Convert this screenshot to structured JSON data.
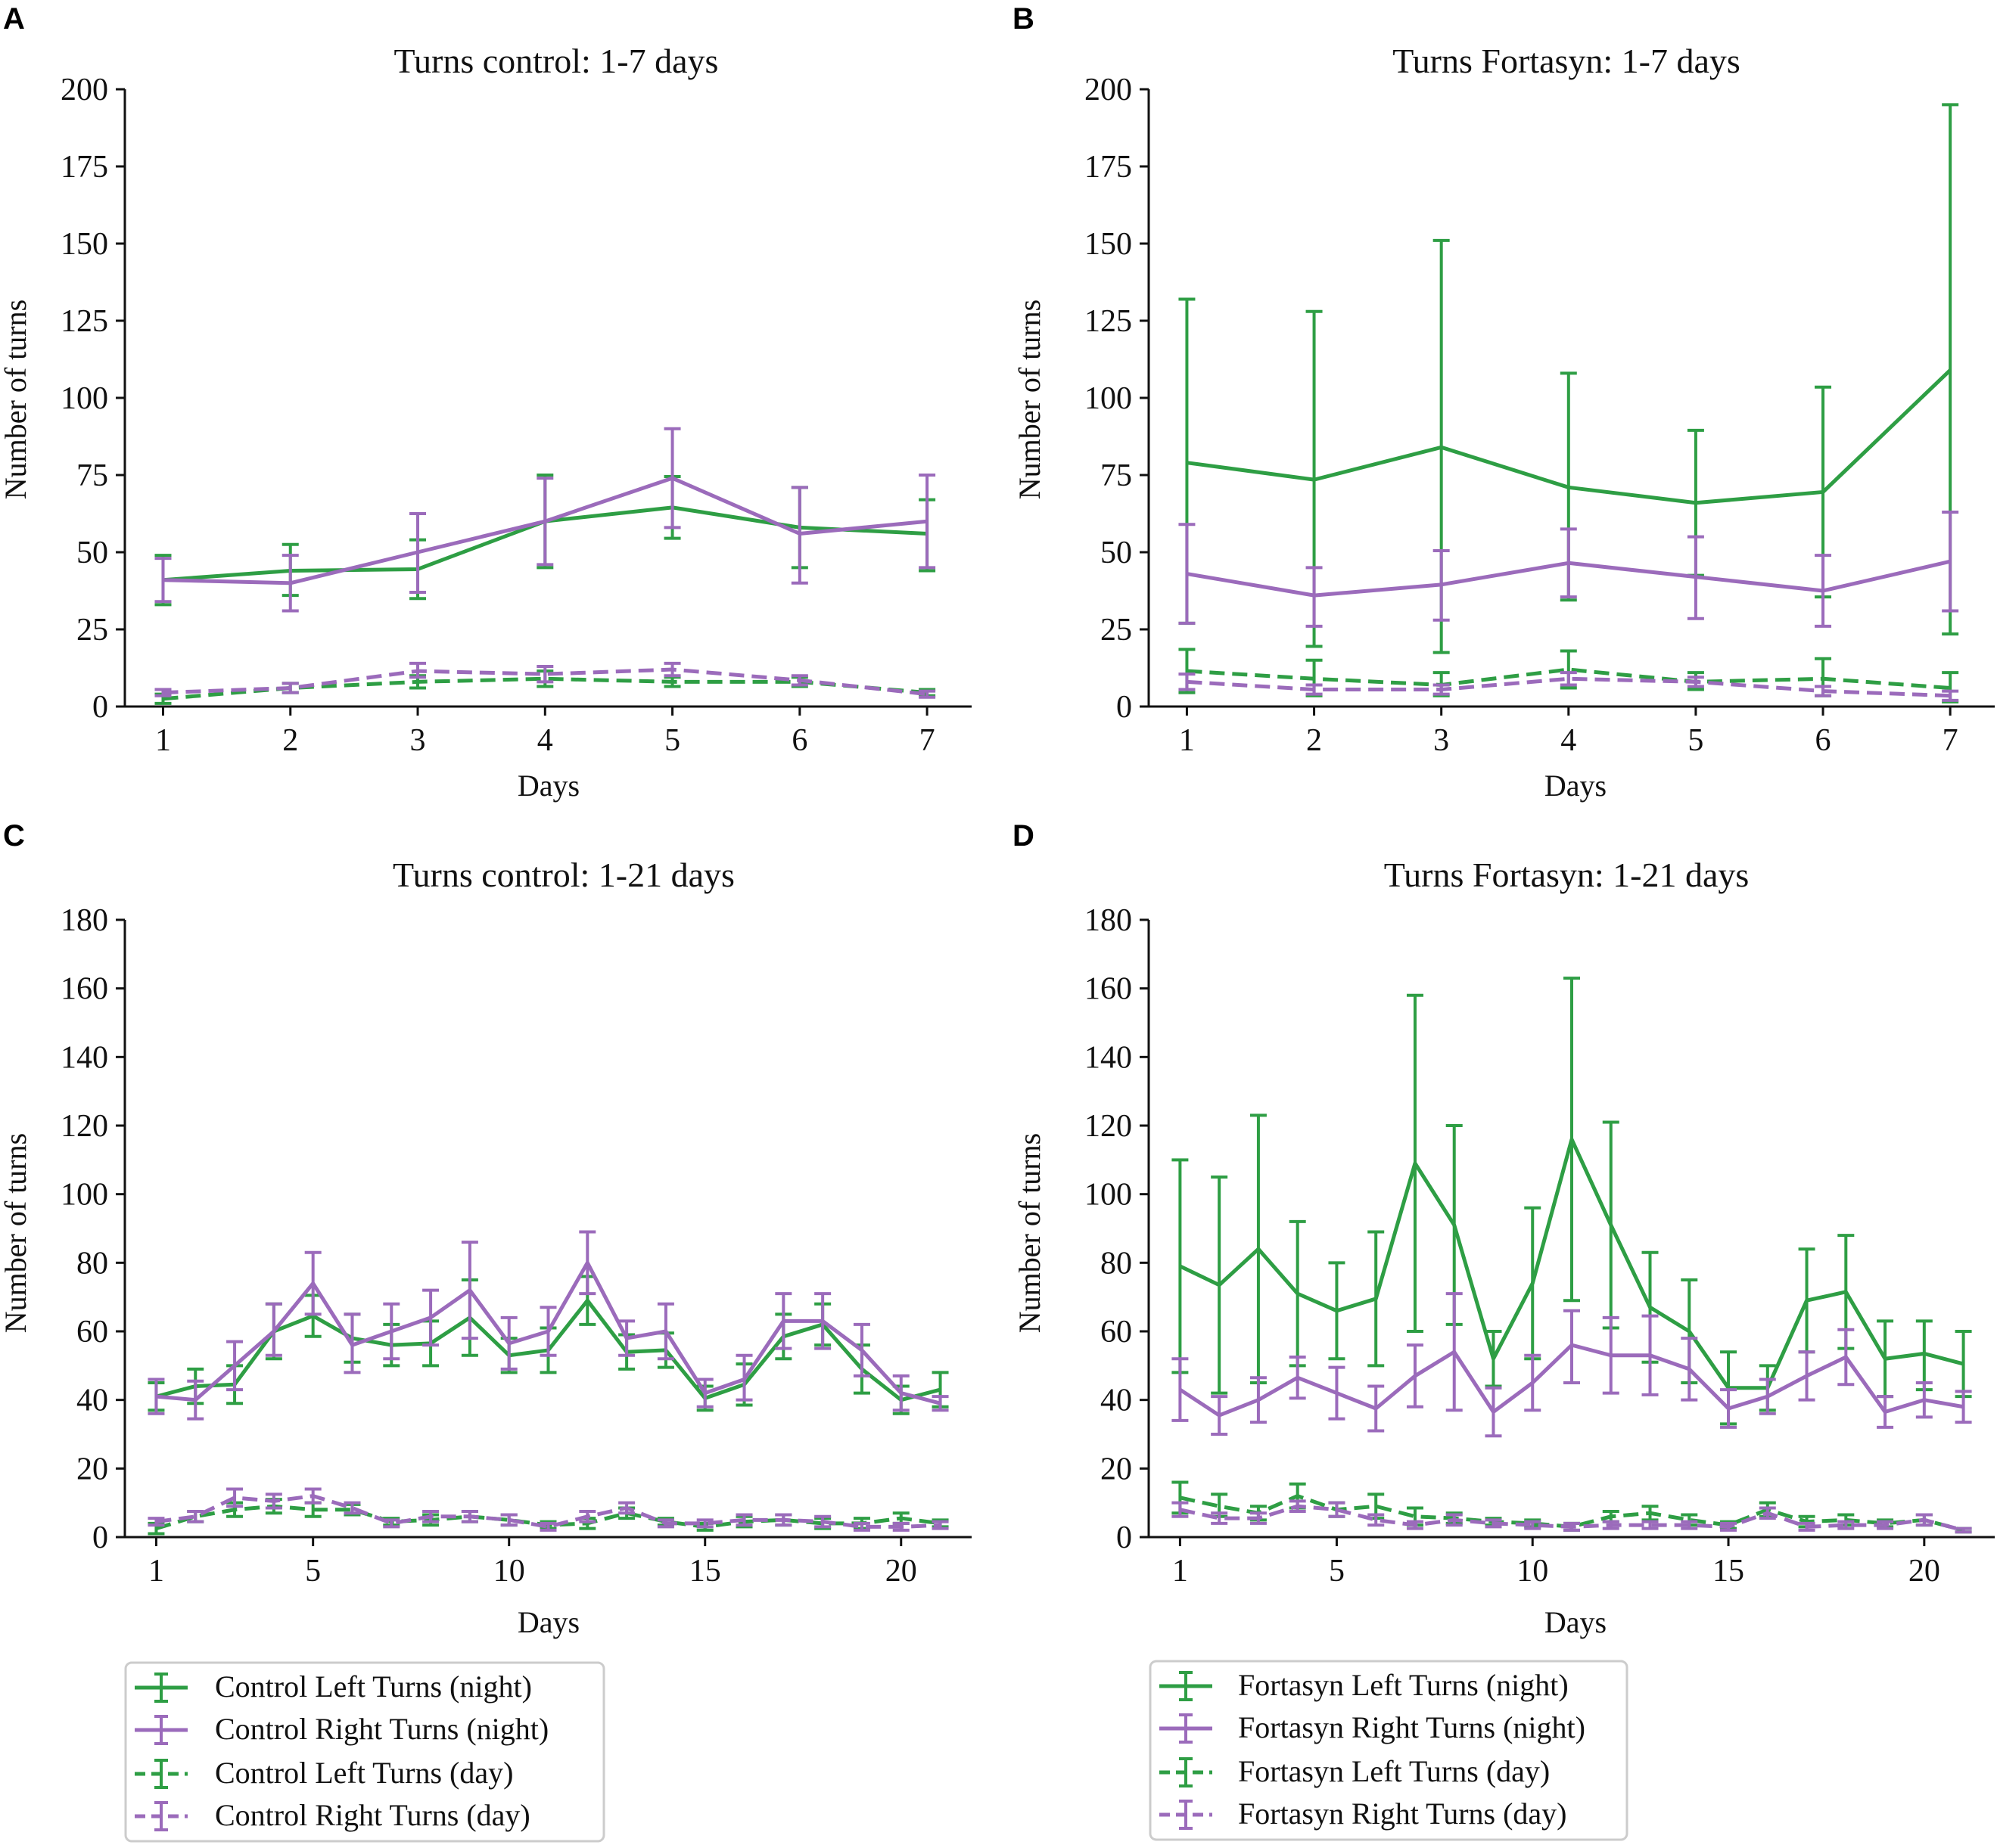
{
  "colors": {
    "left": "#2e9e44",
    "right": "#9b6bbb",
    "axis": "#111111",
    "legend_border": "#cccccc"
  },
  "legends": [
    {
      "id": "control",
      "entries": [
        "Control Left Turns (night)",
        "Control Right Turns (night)",
        "Control Left Turns (day)",
        "Control Right Turns (day)"
      ]
    },
    {
      "id": "fortasyn",
      "entries": [
        "Fortasyn Left Turns (night)",
        "Fortasyn Right Turns (night)",
        "Fortasyn Left Turns (day)",
        "Fortasyn Right Turns (day)"
      ]
    }
  ],
  "chart_data": [
    {
      "panel": "A",
      "type": "line",
      "title": "Turns control: 1-7 days",
      "xlabel": "Days",
      "ylabel": "Number of turns",
      "xlim": [
        0.7,
        7.35
      ],
      "ylim": [
        0,
        200
      ],
      "xticks": [
        1,
        2,
        3,
        4,
        5,
        6,
        7
      ],
      "yticks": [
        0,
        25,
        50,
        75,
        100,
        125,
        150,
        175,
        200
      ],
      "x": [
        1,
        2,
        3,
        4,
        5,
        6,
        7
      ],
      "series": [
        {
          "name": "Control Left Turns (night)",
          "side": "left",
          "dashed": false,
          "values": [
            41,
            44,
            44.5,
            60,
            64.5,
            58,
            56
          ],
          "lower": [
            33,
            36,
            35,
            45,
            54.5,
            45,
            44
          ],
          "upper": [
            49,
            52.5,
            54,
            75,
            74.5,
            71,
            67
          ]
        },
        {
          "name": "Control Right Turns (night)",
          "side": "right",
          "dashed": false,
          "values": [
            41,
            40,
            50,
            60,
            74,
            56,
            60
          ],
          "lower": [
            34,
            31,
            37,
            46,
            58,
            40,
            45
          ],
          "upper": [
            48,
            49,
            62.5,
            74,
            90,
            71,
            75
          ]
        },
        {
          "name": "Control Left Turns (day)",
          "side": "left",
          "dashed": true,
          "values": [
            2.5,
            6,
            8,
            9,
            8,
            8,
            4.5
          ],
          "lower": [
            1,
            4.5,
            6,
            6.5,
            6.5,
            6.5,
            3.5
          ],
          "upper": [
            4,
            7.5,
            10,
            11.5,
            9.5,
            9.5,
            5.5
          ]
        },
        {
          "name": "Control Right Turns (day)",
          "side": "right",
          "dashed": true,
          "values": [
            4.5,
            6,
            11.5,
            10.5,
            12,
            8.5,
            4
          ],
          "lower": [
            3.5,
            4.5,
            9.5,
            8,
            10,
            7,
            3
          ],
          "upper": [
            5.5,
            7.5,
            14,
            13,
            14,
            10,
            5
          ]
        }
      ]
    },
    {
      "panel": "B",
      "type": "line",
      "title": "Turns Fortasyn: 1-7 days",
      "xlabel": "Days",
      "ylabel": "Number of turns",
      "xlim": [
        0.7,
        7.35
      ],
      "ylim": [
        0,
        200
      ],
      "xticks": [
        1,
        2,
        3,
        4,
        5,
        6,
        7
      ],
      "yticks": [
        0,
        25,
        50,
        75,
        100,
        125,
        150,
        175,
        200
      ],
      "x": [
        1,
        2,
        3,
        4,
        5,
        6,
        7
      ],
      "series": [
        {
          "name": "Fortasyn Left Turns (night)",
          "side": "left",
          "dashed": false,
          "values": [
            79,
            73.5,
            84,
            71,
            66,
            69.5,
            109
          ],
          "lower": [
            27,
            19.5,
            17.5,
            34.5,
            42.5,
            35.5,
            23.5
          ],
          "upper": [
            132,
            128,
            151,
            108,
            89.5,
            103.5,
            195
          ]
        },
        {
          "name": "Fortasyn Right Turns (night)",
          "side": "right",
          "dashed": false,
          "values": [
            43,
            36,
            39.5,
            46.5,
            42,
            37.5,
            47
          ],
          "lower": [
            27,
            26,
            28,
            35.5,
            28.5,
            26,
            31
          ],
          "upper": [
            59,
            45,
            50.5,
            57.5,
            55,
            49,
            63
          ]
        },
        {
          "name": "Fortasyn Left Turns (day)",
          "side": "left",
          "dashed": true,
          "values": [
            11.5,
            9,
            7,
            12,
            8,
            9,
            6
          ],
          "lower": [
            4.5,
            3.5,
            3.5,
            6,
            5.5,
            3.5,
            1.5
          ],
          "upper": [
            18.5,
            15,
            11,
            18,
            11,
            15.5,
            11
          ]
        },
        {
          "name": "Fortasyn Right Turns (day)",
          "side": "right",
          "dashed": true,
          "values": [
            8,
            5.5,
            5.5,
            9,
            8,
            5,
            3.5
          ],
          "lower": [
            5.5,
            4,
            4,
            7,
            6.5,
            3.5,
            2
          ],
          "upper": [
            10.5,
            7,
            7,
            11,
            9.5,
            6.5,
            5
          ]
        }
      ]
    },
    {
      "panel": "C",
      "type": "line",
      "title": "Turns control: 1-21 days",
      "xlabel": "Days",
      "ylabel": "Number of turns",
      "xlim": [
        0.2,
        21.8
      ],
      "ylim": [
        0,
        180
      ],
      "xticks": [
        1,
        5,
        10,
        15,
        20
      ],
      "yticks": [
        0,
        20,
        40,
        60,
        80,
        100,
        120,
        140,
        160,
        180
      ],
      "x": [
        1,
        2,
        3,
        4,
        5,
        6,
        7,
        8,
        9,
        10,
        11,
        12,
        13,
        14,
        15,
        16,
        17,
        18,
        19,
        20,
        21
      ],
      "series": [
        {
          "name": "Control Left Turns (night)",
          "side": "left",
          "dashed": false,
          "values": [
            41,
            44,
            44.5,
            60,
            64.5,
            58,
            56,
            56.5,
            64,
            53,
            54.5,
            69,
            54,
            54.5,
            40.5,
            44.5,
            58.5,
            62,
            49,
            40,
            43
          ],
          "lower": [
            37,
            39,
            39,
            52,
            58.5,
            51,
            50,
            50,
            53,
            48,
            48,
            62,
            49,
            49.5,
            37,
            38.5,
            52,
            56,
            42,
            36,
            38
          ],
          "upper": [
            45,
            49,
            50,
            68,
            70.5,
            65,
            62,
            63,
            75,
            58,
            61,
            76,
            59,
            59.5,
            44,
            50.5,
            65,
            68,
            56,
            44,
            48
          ]
        },
        {
          "name": "Control Right Turns (night)",
          "side": "right",
          "dashed": false,
          "values": [
            41,
            40,
            50,
            60,
            74,
            56,
            60,
            64,
            72,
            56.5,
            60,
            80,
            58,
            60,
            42,
            46,
            63,
            63,
            54.5,
            42,
            39
          ],
          "lower": [
            36,
            34.5,
            43,
            53,
            65,
            48,
            52,
            56,
            58,
            49,
            53,
            71,
            53,
            52,
            38,
            40,
            55,
            55,
            47,
            37,
            37
          ],
          "upper": [
            46,
            45.5,
            57,
            68,
            83,
            65,
            68,
            72,
            86,
            64,
            67,
            89,
            63,
            68,
            46,
            53,
            71,
            71,
            62,
            47,
            41
          ]
        },
        {
          "name": "Control Left Turns (day)",
          "side": "left",
          "dashed": true,
          "values": [
            2.5,
            6,
            8,
            9,
            8,
            8,
            4.5,
            5,
            6,
            5,
            3.5,
            4,
            7,
            4.5,
            3,
            4.5,
            5,
            4,
            4,
            5.5,
            4
          ],
          "lower": [
            1,
            4.5,
            6,
            7,
            6,
            6.5,
            3.5,
            3.5,
            4.5,
            3.5,
            2.5,
            2.5,
            5.5,
            3.5,
            2,
            3,
            3.5,
            2.5,
            2.5,
            4,
            3
          ],
          "upper": [
            4,
            7.5,
            10,
            11,
            10,
            9.5,
            5.5,
            6.5,
            7.5,
            6.5,
            4.5,
            5.5,
            8.5,
            5.5,
            4,
            6,
            6.5,
            5.5,
            5.5,
            7,
            5
          ]
        },
        {
          "name": "Control Right Turns (day)",
          "side": "right",
          "dashed": true,
          "values": [
            4.5,
            6,
            11.5,
            10.5,
            12,
            8.5,
            4,
            6,
            6,
            5,
            3,
            6,
            8.5,
            4,
            4,
            5,
            5,
            4.5,
            3,
            3,
            3.5
          ],
          "lower": [
            3.5,
            4.5,
            9,
            8.5,
            10,
            7,
            3,
            4.5,
            4.5,
            3.5,
            2,
            4.5,
            7,
            3,
            3,
            3.5,
            3.5,
            3,
            2,
            2,
            2.5
          ],
          "upper": [
            5.5,
            7.5,
            14,
            12.5,
            14,
            10,
            5,
            7.5,
            7.5,
            6.5,
            4,
            7.5,
            10,
            5,
            5,
            6.5,
            6.5,
            6,
            4,
            4,
            4.5
          ]
        }
      ]
    },
    {
      "panel": "D",
      "type": "line",
      "title": "Turns Fortasyn: 1-21 days",
      "xlabel": "Days",
      "ylabel": "Number of turns",
      "xlim": [
        0.2,
        21.8
      ],
      "ylim": [
        0,
        180
      ],
      "xticks": [
        1,
        5,
        10,
        15,
        20
      ],
      "yticks": [
        0,
        20,
        40,
        60,
        80,
        100,
        120,
        140,
        160,
        180
      ],
      "x": [
        1,
        2,
        3,
        4,
        5,
        6,
        7,
        8,
        9,
        10,
        11,
        12,
        13,
        14,
        15,
        16,
        17,
        18,
        19,
        20,
        21
      ],
      "series": [
        {
          "name": "Fortasyn Left Turns (night)",
          "side": "left",
          "dashed": false,
          "values": [
            79,
            73.5,
            84,
            71,
            66,
            69.5,
            109,
            91,
            52,
            74,
            116,
            91,
            67,
            60,
            43.5,
            43.5,
            69,
            71.5,
            52,
            53.5,
            50.5
          ],
          "lower": [
            48,
            42,
            45,
            50,
            52,
            50,
            60,
            62,
            44,
            52,
            69,
            61,
            51,
            45,
            33,
            37,
            54,
            55,
            41,
            43,
            41
          ],
          "upper": [
            110,
            105,
            123,
            92,
            80,
            89,
            158,
            120,
            60,
            96,
            163,
            121,
            83,
            75,
            54,
            50,
            84,
            88,
            63,
            63,
            60
          ]
        },
        {
          "name": "Fortasyn Right Turns (night)",
          "side": "right",
          "dashed": false,
          "values": [
            43,
            35.5,
            40,
            46.5,
            42,
            37.5,
            47,
            54,
            36.5,
            45,
            56,
            53,
            53,
            49,
            37.5,
            41,
            47,
            52.5,
            36.5,
            40,
            38
          ],
          "lower": [
            34,
            30,
            33.5,
            40.5,
            34.5,
            31,
            38,
            37,
            29.5,
            37,
            45,
            42,
            41.5,
            40,
            32,
            36,
            40,
            44.5,
            32,
            35,
            33.5
          ],
          "upper": [
            52,
            41,
            46.5,
            52.5,
            49.5,
            44,
            56,
            71,
            43.5,
            53,
            66,
            64,
            64.5,
            58,
            43,
            46,
            54,
            60.5,
            41,
            45,
            42.5
          ]
        },
        {
          "name": "Fortasyn Left Turns (day)",
          "side": "left",
          "dashed": true,
          "values": [
            11.5,
            9,
            7,
            12,
            8,
            9,
            6,
            5.5,
            4.5,
            4,
            3,
            6,
            7,
            5,
            3.5,
            8,
            4.5,
            5,
            4,
            5,
            2
          ],
          "lower": [
            7,
            6,
            5,
            8.5,
            6,
            5.5,
            3.5,
            4,
            3.5,
            3,
            2,
            4.5,
            5,
            3.5,
            2.5,
            6,
            3,
            3.5,
            3,
            3.5,
            1.5
          ],
          "upper": [
            16,
            12.5,
            9,
            15.5,
            10,
            12.5,
            8.5,
            7,
            5.5,
            5,
            4,
            7.5,
            9,
            6.5,
            4.5,
            10,
            6,
            6.5,
            5,
            6.5,
            2.5
          ]
        },
        {
          "name": "Fortasyn Right Turns (day)",
          "side": "right",
          "dashed": true,
          "values": [
            8,
            5.5,
            5.5,
            9,
            8,
            5,
            3.5,
            5,
            4,
            3.5,
            3,
            3.5,
            3.5,
            3.5,
            3,
            7,
            3,
            3.5,
            3.5,
            5,
            2
          ],
          "lower": [
            6,
            4,
            4,
            7.5,
            6,
            3.5,
            2.5,
            3.5,
            3,
            2.5,
            2,
            2.5,
            2.5,
            2.5,
            2,
            5.5,
            2,
            2.5,
            2.5,
            3.5,
            1.5
          ],
          "upper": [
            10,
            7,
            7,
            10.5,
            10,
            6.5,
            4.5,
            6.5,
            5,
            4.5,
            4,
            4.5,
            4.5,
            4.5,
            4,
            8.5,
            4,
            4.5,
            4.5,
            6.5,
            2.5
          ]
        }
      ]
    }
  ]
}
